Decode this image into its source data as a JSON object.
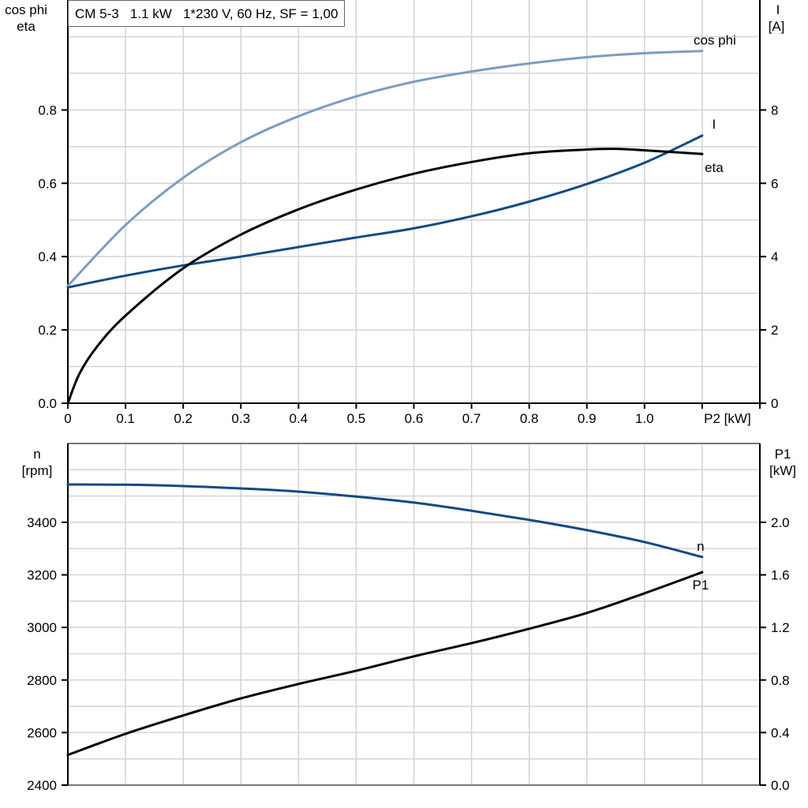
{
  "title": "CM 5-3   1.1 kW   1*230 V, 60 Hz, SF = 1,00",
  "colors": {
    "cos_phi": "#7b9dc1",
    "current": "#0e4a84",
    "eta": "#000000",
    "n": "#0e4a84",
    "p1": "#000000",
    "grid": "#d3d3d3"
  },
  "chart_data": [
    {
      "type": "line",
      "xlabel": "P2 [kW]",
      "ylabel_left": [
        "cos phi",
        "eta"
      ],
      "ylabel_right": [
        "I",
        "[A]"
      ],
      "xlim": [
        0,
        1.2
      ],
      "ylim_left": [
        0,
        1.1
      ],
      "ylim_right": [
        0,
        11
      ],
      "grid": true,
      "x_ticks": [
        "0",
        "0.1",
        "0.2",
        "0.3",
        "0.4",
        "0.5",
        "0.6",
        "0.7",
        "0.8",
        "0.9",
        "1.0"
      ],
      "y_ticks_left": [
        "0.0",
        "0.2",
        "0.4",
        "0.6",
        "0.8"
      ],
      "y_ticks_right": [
        "0",
        "2",
        "4",
        "6",
        "8"
      ],
      "series": [
        {
          "name": "cos phi",
          "axis": "left",
          "color_key": "cos_phi",
          "x": [
            0,
            0.1,
            0.2,
            0.3,
            0.4,
            0.5,
            0.6,
            0.7,
            0.8,
            0.9,
            1.0,
            1.1
          ],
          "y": [
            0.32,
            0.486,
            0.615,
            0.712,
            0.783,
            0.837,
            0.877,
            0.905,
            0.927,
            0.944,
            0.955,
            0.961
          ]
        },
        {
          "name": "I",
          "axis": "right",
          "color_key": "current",
          "x": [
            0,
            0.1,
            0.2,
            0.3,
            0.4,
            0.5,
            0.6,
            0.7,
            0.8,
            0.9,
            1.0,
            1.1
          ],
          "y": [
            3.16,
            3.48,
            3.76,
            4.0,
            4.26,
            4.52,
            4.77,
            5.1,
            5.5,
            5.98,
            6.56,
            7.3
          ]
        },
        {
          "name": "eta",
          "axis": "left",
          "color_key": "eta",
          "x": [
            0,
            0.02,
            0.05,
            0.1,
            0.2,
            0.3,
            0.4,
            0.5,
            0.6,
            0.7,
            0.8,
            0.9,
            0.95,
            1.0,
            1.1
          ],
          "y": [
            0,
            0.08,
            0.153,
            0.239,
            0.368,
            0.46,
            0.529,
            0.583,
            0.626,
            0.658,
            0.682,
            0.692,
            0.694,
            0.69,
            0.68
          ]
        }
      ]
    },
    {
      "type": "line",
      "ylabel_left": [
        "n",
        "[rpm]"
      ],
      "ylabel_right": [
        "P1",
        "[kW]"
      ],
      "xlim": [
        0,
        1.2
      ],
      "ylim_left": [
        2400,
        3700
      ],
      "ylim_right": [
        0,
        2.6
      ],
      "grid": true,
      "y_ticks_left": [
        "2400",
        "2600",
        "2800",
        "3000",
        "3200",
        "3400"
      ],
      "y_ticks_right": [
        "0.0",
        "0.4",
        "0.8",
        "1.2",
        "1.6",
        "2.0"
      ],
      "series": [
        {
          "name": "n",
          "axis": "left",
          "color_key": "n",
          "x": [
            0,
            0.1,
            0.2,
            0.3,
            0.4,
            0.5,
            0.6,
            0.7,
            0.8,
            0.9,
            1.0,
            1.1
          ],
          "y": [
            3544,
            3543,
            3538,
            3529,
            3517,
            3498,
            3475,
            3444,
            3409,
            3370,
            3325,
            3268
          ]
        },
        {
          "name": "P1",
          "axis": "right",
          "color_key": "p1",
          "x": [
            0,
            0.1,
            0.2,
            0.3,
            0.4,
            0.5,
            0.6,
            0.7,
            0.8,
            0.9,
            1.0,
            1.1
          ],
          "y": [
            0.23,
            0.39,
            0.53,
            0.66,
            0.77,
            0.87,
            0.98,
            1.08,
            1.19,
            1.31,
            1.46,
            1.62
          ]
        }
      ]
    }
  ]
}
